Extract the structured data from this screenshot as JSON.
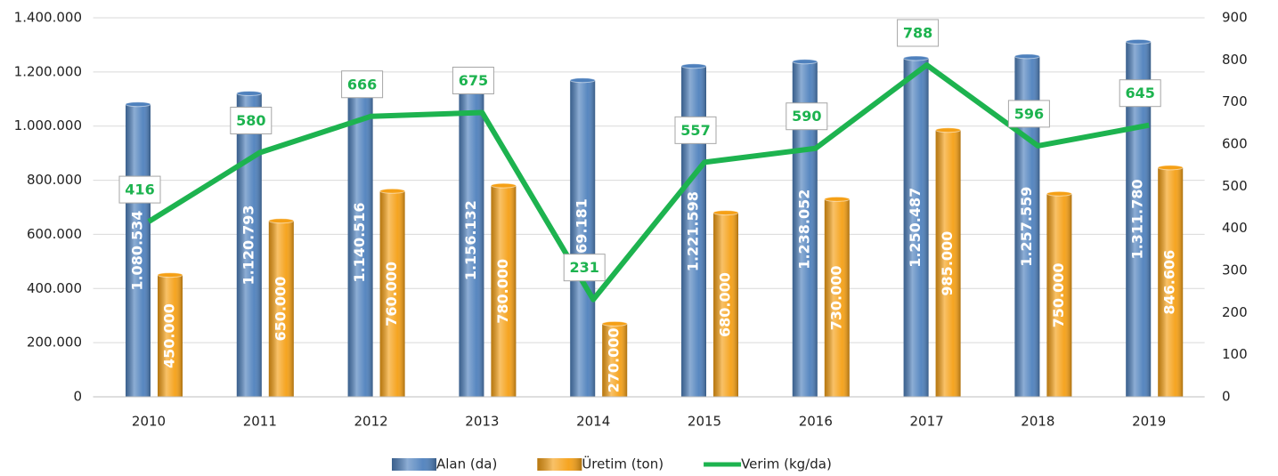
{
  "chart_data": {
    "type": "bar",
    "categories": [
      "2010",
      "2011",
      "2012",
      "2013",
      "2014",
      "2015",
      "2016",
      "2017",
      "2018",
      "2019"
    ],
    "series": [
      {
        "name": "Alan (da)",
        "type": "bar",
        "color": "#4f81bd",
        "values": [
          1080534,
          1120793,
          1140516,
          1156132,
          1169181,
          1221598,
          1238052,
          1250487,
          1257559,
          1311780
        ],
        "value_labels": [
          "1.080.534",
          "1.120.793",
          "1.140.516",
          "1.156.132",
          "1.169.181",
          "1.221.598",
          "1.238.052",
          "1.250.487",
          "1.257.559",
          "1.311.780"
        ]
      },
      {
        "name": "Üretim (ton)",
        "type": "bar",
        "color": "#f5a016",
        "values": [
          450000,
          650000,
          760000,
          780000,
          270000,
          680000,
          730000,
          985000,
          750000,
          846606
        ],
        "value_labels": [
          "450.000",
          "650.000",
          "760.000",
          "780.000",
          "270.000",
          "680.000",
          "730.000",
          "985.000",
          "750.000",
          "846.606"
        ]
      },
      {
        "name": "Verim (kg/da)",
        "type": "line",
        "axis": "y2",
        "color": "#1db34f",
        "values": [
          416,
          580,
          666,
          675,
          231,
          557,
          590,
          788,
          596,
          645
        ]
      }
    ],
    "ylim": [
      0,
      1400000
    ],
    "yticks": [
      0,
      {
        "value": 200000,
        "label": "200.000"
      },
      {
        "value": 400000,
        "label": "400.000"
      },
      {
        "value": 600000,
        "label": "600.000"
      },
      {
        "value": 800000,
        "label": "800.000"
      },
      {
        "value": 1000000,
        "label": "1.000.000"
      },
      {
        "value": 1200000,
        "label": "1.200.000"
      },
      {
        "value": 1400000,
        "label": "1.400.000"
      }
    ],
    "y2lim": [
      0,
      900
    ],
    "y2ticks": [
      0,
      100,
      200,
      300,
      400,
      500,
      600,
      700,
      800,
      900
    ],
    "grid": true,
    "legend": "bottom"
  }
}
